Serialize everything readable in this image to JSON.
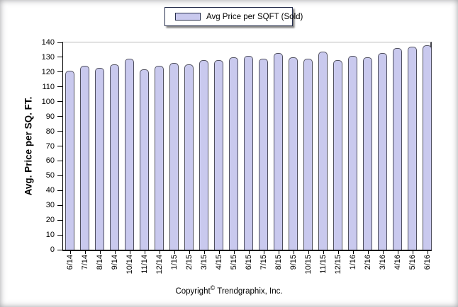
{
  "legend": {
    "label": "Avg Price per SQFT (Sold)"
  },
  "y_axis": {
    "title": "Avg. Price per SQ. FT."
  },
  "footer": {
    "prefix": "Copyright",
    "symbol": "©",
    "company": "Trendgraphix, Inc."
  },
  "colors": {
    "bar_fill": "#c9c9ee",
    "bar_border": "#50505f",
    "legend_border": "#28304e",
    "axis": "#000000"
  },
  "chart_data": {
    "type": "bar",
    "title": "Avg Price per SQFT (Sold)",
    "ylabel": "Avg. Price per SQ. FT.",
    "xlabel": "",
    "ylim": [
      0,
      140
    ],
    "ytick_step": 10,
    "grid": false,
    "legend_position": "top-center",
    "categories": [
      "6/14",
      "7/14",
      "8/14",
      "9/14",
      "10/14",
      "11/14",
      "12/14",
      "1/15",
      "2/15",
      "3/15",
      "4/15",
      "5/15",
      "6/15",
      "7/15",
      "8/15",
      "9/15",
      "10/15",
      "11/15",
      "12/15",
      "1/16",
      "2/16",
      "3/16",
      "4/16",
      "5/16",
      "6/16"
    ],
    "values": [
      121,
      124,
      123,
      125,
      129,
      122,
      124,
      126,
      125,
      128,
      128,
      130,
      131,
      129,
      133,
      130,
      129,
      134,
      128,
      131,
      130,
      133,
      136,
      137,
      138
    ]
  }
}
